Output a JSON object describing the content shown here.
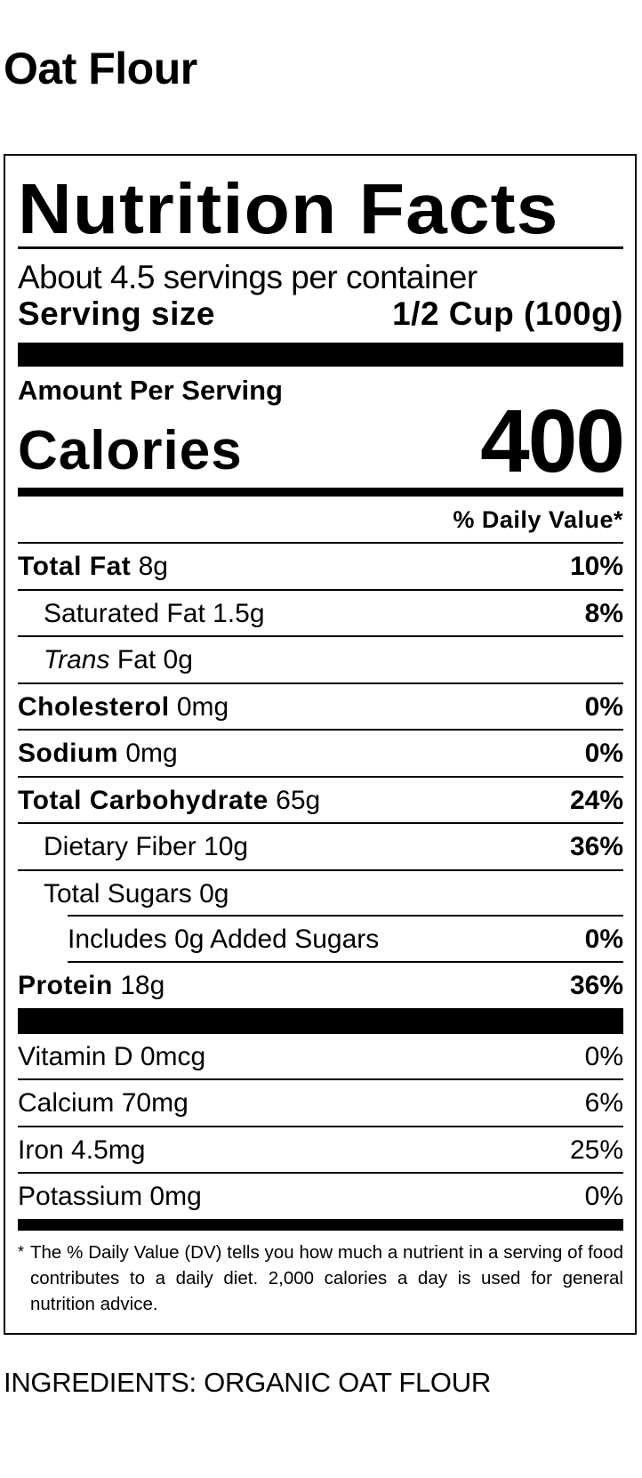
{
  "product_title": "Oat Flour",
  "label": {
    "heading": "Nutrition Facts",
    "servings_per_container": "About 4.5 servings per container",
    "serving_size_label": "Serving size",
    "serving_size_value": "1/2 Cup (100g)",
    "amount_per_serving": "Amount Per Serving",
    "calories_label": "Calories",
    "calories_value": "400",
    "daily_value_header": "% Daily Value*",
    "nutrients": [
      {
        "name": "Total Fat",
        "amount": "8g",
        "dv": "10%"
      },
      {
        "name": "Saturated Fat",
        "amount": "1.5g",
        "dv": "8%"
      },
      {
        "name": "Trans",
        "name_suffix": "Fat",
        "amount": "0g",
        "dv": ""
      },
      {
        "name": "Cholesterol",
        "amount": "0mg",
        "dv": "0%"
      },
      {
        "name": "Sodium",
        "amount": "0mg",
        "dv": "0%"
      },
      {
        "name": "Total Carbohydrate",
        "amount": "65g",
        "dv": "24%"
      },
      {
        "name": "Dietary Fiber",
        "amount": "10g",
        "dv": "36%"
      },
      {
        "name": "Total Sugars",
        "amount": "0g",
        "dv": ""
      },
      {
        "name": "Includes 0g Added Sugars",
        "amount": "",
        "dv": "0%"
      },
      {
        "name": "Protein",
        "amount": "18g",
        "dv": "36%"
      }
    ],
    "vitamins": [
      {
        "name": "Vitamin D",
        "amount": "0mcg",
        "dv": "0%"
      },
      {
        "name": "Calcium",
        "amount": "70mg",
        "dv": "6%"
      },
      {
        "name": "Iron",
        "amount": "4.5mg",
        "dv": "25%"
      },
      {
        "name": "Potassium",
        "amount": "0mg",
        "dv": "0%"
      }
    ],
    "footnote_star": "*",
    "footnote": "The % Daily Value (DV) tells you how much a nutrient in a serving of food contributes to a daily diet. 2,000 calories a day is used for general nutrition advice."
  },
  "ingredients": "INGREDIENTS: ORGANIC OAT FLOUR"
}
